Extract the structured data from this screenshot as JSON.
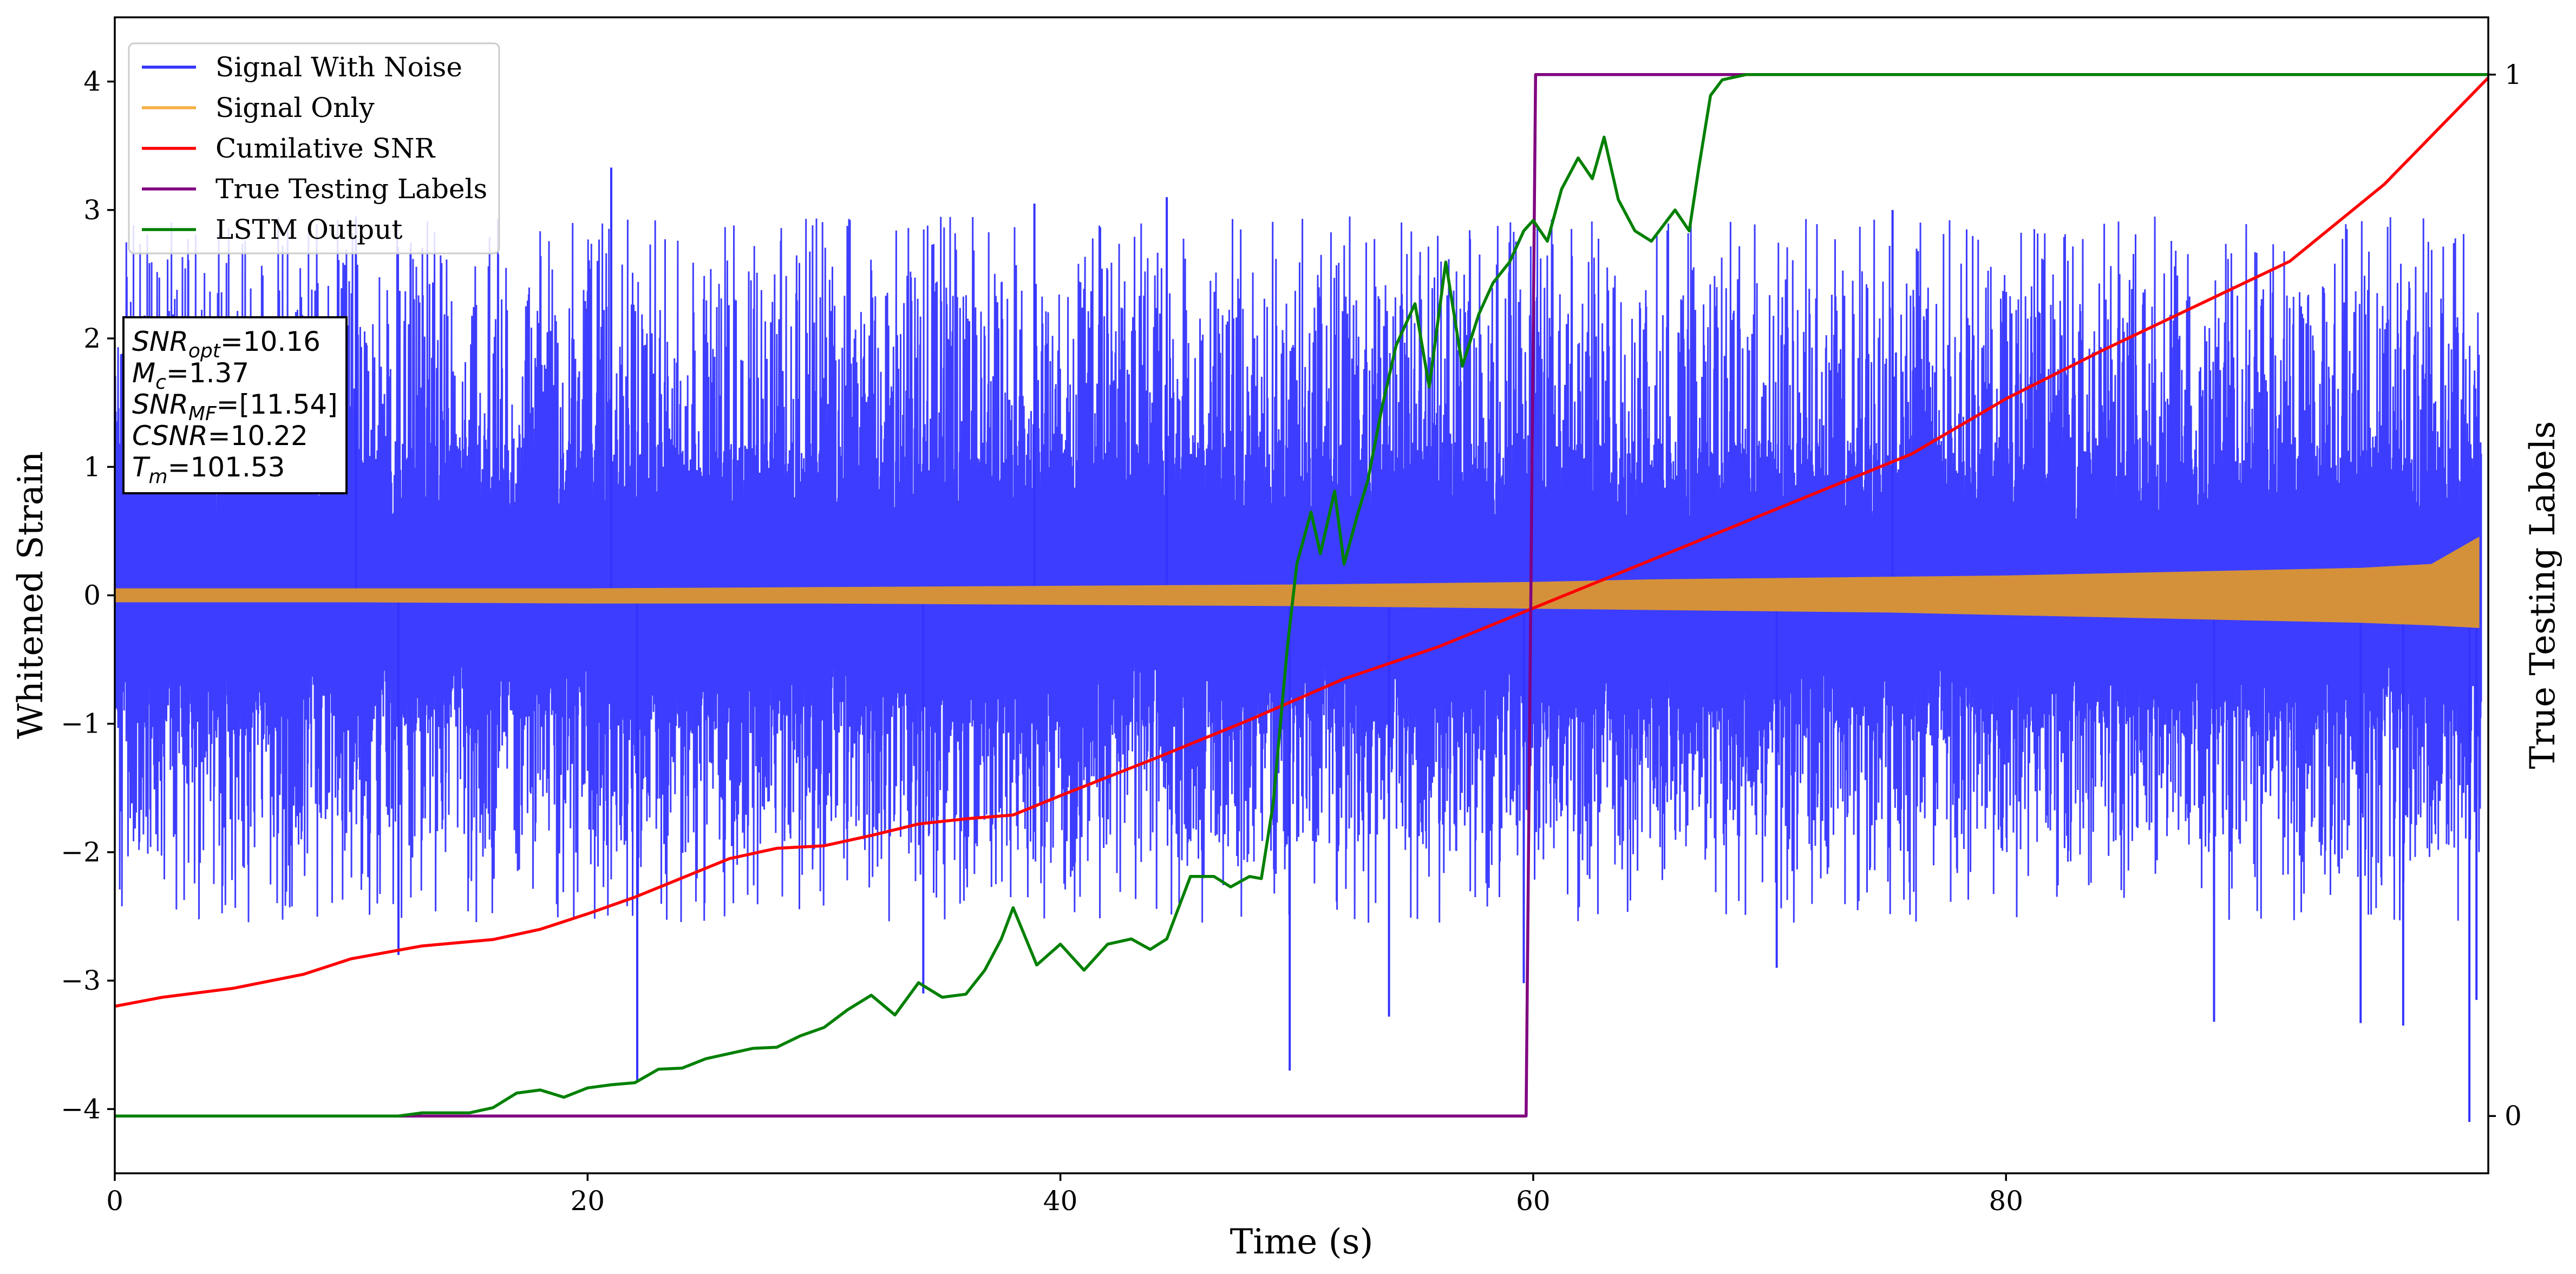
{
  "chart_data": {
    "type": "line",
    "xlabel": "Time (s)",
    "ylabel": "Whitened Strain",
    "y2label": "True Testing Labels",
    "xlim": [
      0,
      100.4
    ],
    "ylim": [
      -4.5,
      4.5
    ],
    "y2lim": [
      -0.055,
      1.055
    ],
    "grid": false,
    "legend_position": "top-left",
    "x_ticks": [
      "0",
      "20",
      "40",
      "60",
      "80"
    ],
    "x_tick_values": [
      0,
      20,
      40,
      60,
      80
    ],
    "y_ticks": [
      "−4",
      "−3",
      "−2",
      "−1",
      "0",
      "1",
      "2",
      "3",
      "4"
    ],
    "y_tick_values": [
      -4,
      -3,
      -2,
      -1,
      0,
      1,
      2,
      3,
      4
    ],
    "y2_ticks": [
      "0",
      "1"
    ],
    "y2_tick_values": [
      0,
      1
    ],
    "legend": [
      {
        "label": "Signal With Noise",
        "color": "#3333ff"
      },
      {
        "label": "Signal Only",
        "color": "#f5b041"
      },
      {
        "label": "Cumilative SNR",
        "color": "#ff0000"
      },
      {
        "label": "True Testing Labels",
        "color": "#800080"
      },
      {
        "label": "LSTM Output",
        "color": "#008000"
      }
    ],
    "info_box": {
      "lines": [
        {
          "var": "SNR",
          "sub": "opt",
          "val": "=10.16"
        },
        {
          "var": "M",
          "sub": "c",
          "val": "=1.37"
        },
        {
          "var": "SNR",
          "sub": "MF",
          "val": "=[11.54]"
        },
        {
          "var": "CSNR",
          "sub": "",
          "val": "=10.22"
        },
        {
          "var": "T",
          "sub": "m",
          "val": "=101.53"
        }
      ]
    },
    "series": [
      {
        "name": "Signal With Noise",
        "axis": "left",
        "color": "#3333ff",
        "render": "noise_band",
        "band_upper": 2.4,
        "band_lower": -2.0,
        "dense_upper": 1.2,
        "dense_lower": -1.1,
        "extremes": [
          {
            "x": 21.0,
            "y": 3.33
          },
          {
            "x": 22.1,
            "y": -3.78
          },
          {
            "x": 10.2,
            "y": 2.95
          },
          {
            "x": 44.5,
            "y": 3.1
          },
          {
            "x": 38.9,
            "y": 3.05
          },
          {
            "x": 75.2,
            "y": 3.0
          },
          {
            "x": 49.7,
            "y": -3.7
          },
          {
            "x": 53.9,
            "y": -3.28
          },
          {
            "x": 59.6,
            "y": -3.02
          },
          {
            "x": 88.8,
            "y": -3.32
          },
          {
            "x": 95.0,
            "y": -3.33
          },
          {
            "x": 96.8,
            "y": -3.35
          },
          {
            "x": 99.6,
            "y": -4.1
          },
          {
            "x": 99.9,
            "y": -3.15
          },
          {
            "x": 12.0,
            "y": -2.8
          },
          {
            "x": 34.2,
            "y": -3.1
          },
          {
            "x": 70.3,
            "y": -2.9
          }
        ]
      },
      {
        "name": "Signal Only",
        "axis": "left",
        "color": "#d4913a",
        "render": "envelope",
        "x": [
          0,
          10,
          20,
          30,
          40,
          50,
          55,
          60,
          65,
          70,
          75,
          80,
          85,
          90,
          95,
          98,
          100
        ],
        "upper": [
          0.05,
          0.05,
          0.05,
          0.06,
          0.07,
          0.08,
          0.09,
          0.1,
          0.12,
          0.13,
          0.14,
          0.15,
          0.17,
          0.19,
          0.21,
          0.24,
          0.45
        ],
        "lower": [
          -0.05,
          -0.05,
          -0.06,
          -0.06,
          -0.07,
          -0.08,
          -0.09,
          -0.1,
          -0.11,
          -0.12,
          -0.13,
          -0.15,
          -0.17,
          -0.19,
          -0.21,
          -0.23,
          -0.25
        ]
      },
      {
        "name": "Cumilative SNR",
        "axis": "left",
        "color": "#ff0000",
        "x": [
          0,
          2,
          5,
          8,
          10,
          13,
          16,
          18,
          20,
          22,
          24,
          26,
          28,
          30,
          32,
          34,
          36,
          38,
          40,
          44,
          48,
          52,
          56,
          60,
          64,
          68,
          72,
          76,
          80,
          84,
          88,
          92,
          96,
          100.4
        ],
        "y": [
          -3.2,
          -3.13,
          -3.06,
          -2.95,
          -2.83,
          -2.73,
          -2.68,
          -2.6,
          -2.48,
          -2.35,
          -2.2,
          -2.05,
          -1.97,
          -1.95,
          -1.87,
          -1.78,
          -1.74,
          -1.71,
          -1.56,
          -1.27,
          -0.97,
          -0.65,
          -0.4,
          -0.1,
          0.2,
          0.5,
          0.8,
          1.1,
          1.53,
          1.9,
          2.25,
          2.6,
          3.2,
          4.03
        ]
      },
      {
        "name": "True Testing Labels",
        "axis": "right",
        "color": "#800080",
        "x": [
          0,
          59.7,
          60.1,
          100.4
        ],
        "y": [
          0,
          0,
          1,
          1
        ]
      },
      {
        "name": "LSTM Output",
        "axis": "right",
        "color": "#008000",
        "x": [
          0,
          12,
          13,
          15,
          16,
          17,
          18,
          19,
          20,
          21,
          22,
          23,
          24,
          25,
          26,
          27,
          28,
          29,
          30,
          31,
          32,
          33,
          34,
          35,
          36,
          36.8,
          37.5,
          38,
          39,
          40,
          41,
          42,
          43,
          43.8,
          44.5,
          45.5,
          46.5,
          47.2,
          48,
          48.5,
          49,
          49.6,
          50,
          50.6,
          51,
          51.6,
          52,
          52.6,
          53,
          53.6,
          54.2,
          55,
          55.6,
          56.3,
          57,
          57.7,
          58.3,
          59,
          59.6,
          60,
          60.6,
          61.2,
          61.9,
          62.5,
          63,
          63.6,
          64.3,
          65,
          66,
          66.6,
          67,
          67.5,
          68,
          69,
          70,
          100.4
        ],
        "y": [
          0,
          0,
          0.003,
          0.003,
          0.008,
          0.022,
          0.025,
          0.018,
          0.027,
          0.03,
          0.032,
          0.045,
          0.046,
          0.055,
          0.06,
          0.065,
          0.066,
          0.077,
          0.085,
          0.102,
          0.116,
          0.097,
          0.128,
          0.114,
          0.117,
          0.14,
          0.17,
          0.2,
          0.145,
          0.165,
          0.14,
          0.165,
          0.17,
          0.16,
          0.17,
          0.23,
          0.23,
          0.22,
          0.23,
          0.228,
          0.3,
          0.45,
          0.53,
          0.58,
          0.54,
          0.6,
          0.53,
          0.58,
          0.61,
          0.68,
          0.74,
          0.78,
          0.7,
          0.82,
          0.72,
          0.77,
          0.8,
          0.82,
          0.85,
          0.86,
          0.84,
          0.89,
          0.92,
          0.9,
          0.94,
          0.88,
          0.85,
          0.84,
          0.87,
          0.85,
          0.91,
          0.98,
          0.995,
          1,
          1,
          1
        ]
      }
    ]
  }
}
